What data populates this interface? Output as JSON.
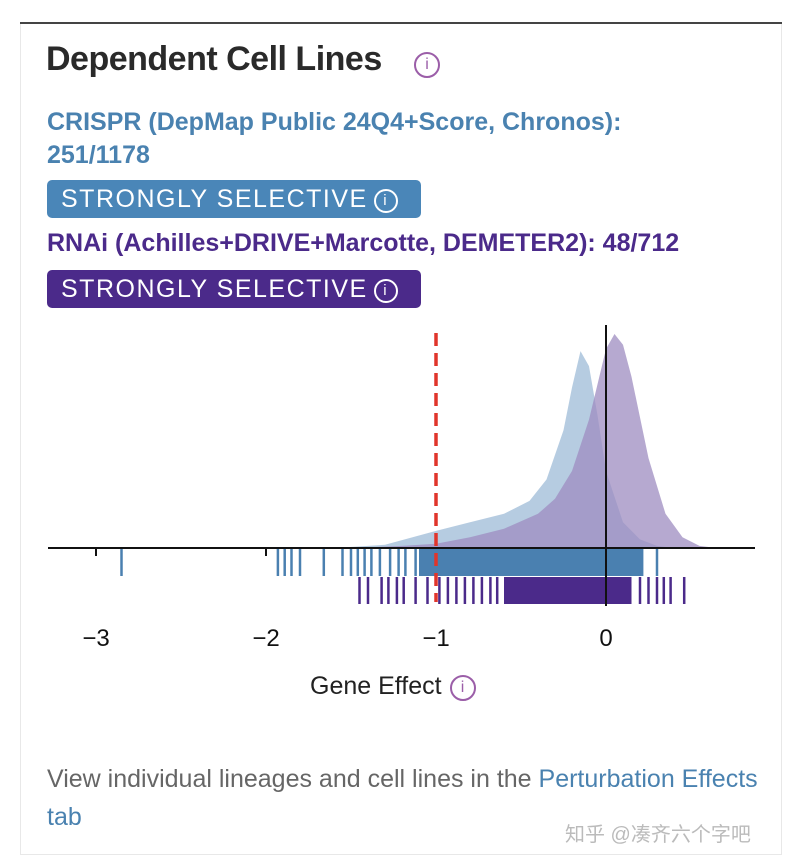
{
  "header": {
    "title": "Dependent Cell Lines",
    "info_icon": "i"
  },
  "crispr": {
    "label": "CRISPR (DepMap Public 24Q4+Score, Chronos): 251/1178",
    "badge": "STRONGLY SELECTIVE",
    "color": "#4a86b8"
  },
  "rnai": {
    "label": "RNAi (Achilles+DRIVE+Marcotte, DEMETER2): 48/712",
    "badge": "STRONGLY SELECTIVE",
    "color": "#4b2a8a"
  },
  "footer": {
    "text": "View individual lineages and cell lines in the ",
    "link": "Perturbation Effects tab"
  },
  "watermark": "知乎 @凑齐六个字吧",
  "chart_data": {
    "type": "area",
    "xlabel": "Gene Effect",
    "xlim": [
      -3.35,
      0.85
    ],
    "ylim": [
      0,
      1.05
    ],
    "xticks": [
      -3,
      -2,
      -1,
      0
    ],
    "xtick_labels": [
      "−3",
      "−2",
      "−1",
      "0"
    ],
    "threshold": -1,
    "series": [
      {
        "name": "CRISPR",
        "fill": "#a9c3dc",
        "x": [
          -1.6,
          -1.3,
          -1.0,
          -0.8,
          -0.6,
          -0.45,
          -0.35,
          -0.25,
          -0.2,
          -0.15,
          -0.1,
          -0.05,
          0,
          0.1,
          0.2,
          0.3,
          0.4
        ],
        "y": [
          0,
          0.015,
          0.08,
          0.12,
          0.16,
          0.22,
          0.32,
          0.55,
          0.75,
          0.92,
          0.85,
          0.62,
          0.36,
          0.12,
          0.04,
          0.01,
          0
        ]
      },
      {
        "name": "RNAi",
        "fill": "#9d8cc0",
        "x": [
          -1.5,
          -1.2,
          -1.0,
          -0.8,
          -0.6,
          -0.4,
          -0.3,
          -0.2,
          -0.1,
          0,
          0.05,
          0.1,
          0.15,
          0.25,
          0.35,
          0.45,
          0.55,
          0.65
        ],
        "y": [
          0,
          0.01,
          0.02,
          0.05,
          0.09,
          0.16,
          0.23,
          0.36,
          0.6,
          0.93,
          1.0,
          0.95,
          0.8,
          0.42,
          0.16,
          0.05,
          0.01,
          0
        ]
      }
    ],
    "rug": {
      "CRISPR": {
        "color": "#4a80b0",
        "points": [
          -2.85,
          -1.93,
          -1.89,
          -1.85,
          -1.8,
          -1.66,
          -1.55,
          -1.5,
          -1.46,
          -1.42,
          -1.38,
          -1.33,
          -1.27,
          -1.22,
          -1.18,
          -1.12,
          0.3
        ],
        "band": [
          -1.1,
          0.22
        ]
      },
      "RNAi": {
        "color": "#4b2a8a",
        "points": [
          -1.45,
          -1.4,
          -1.32,
          -1.28,
          -1.23,
          -1.19,
          -1.12,
          -1.05,
          -0.98,
          -0.93,
          -0.88,
          -0.83,
          -0.78,
          -0.73,
          -0.68,
          -0.64,
          0.2,
          0.25,
          0.3,
          0.34,
          0.38,
          0.46
        ],
        "band": [
          -0.6,
          0.15
        ]
      }
    }
  }
}
